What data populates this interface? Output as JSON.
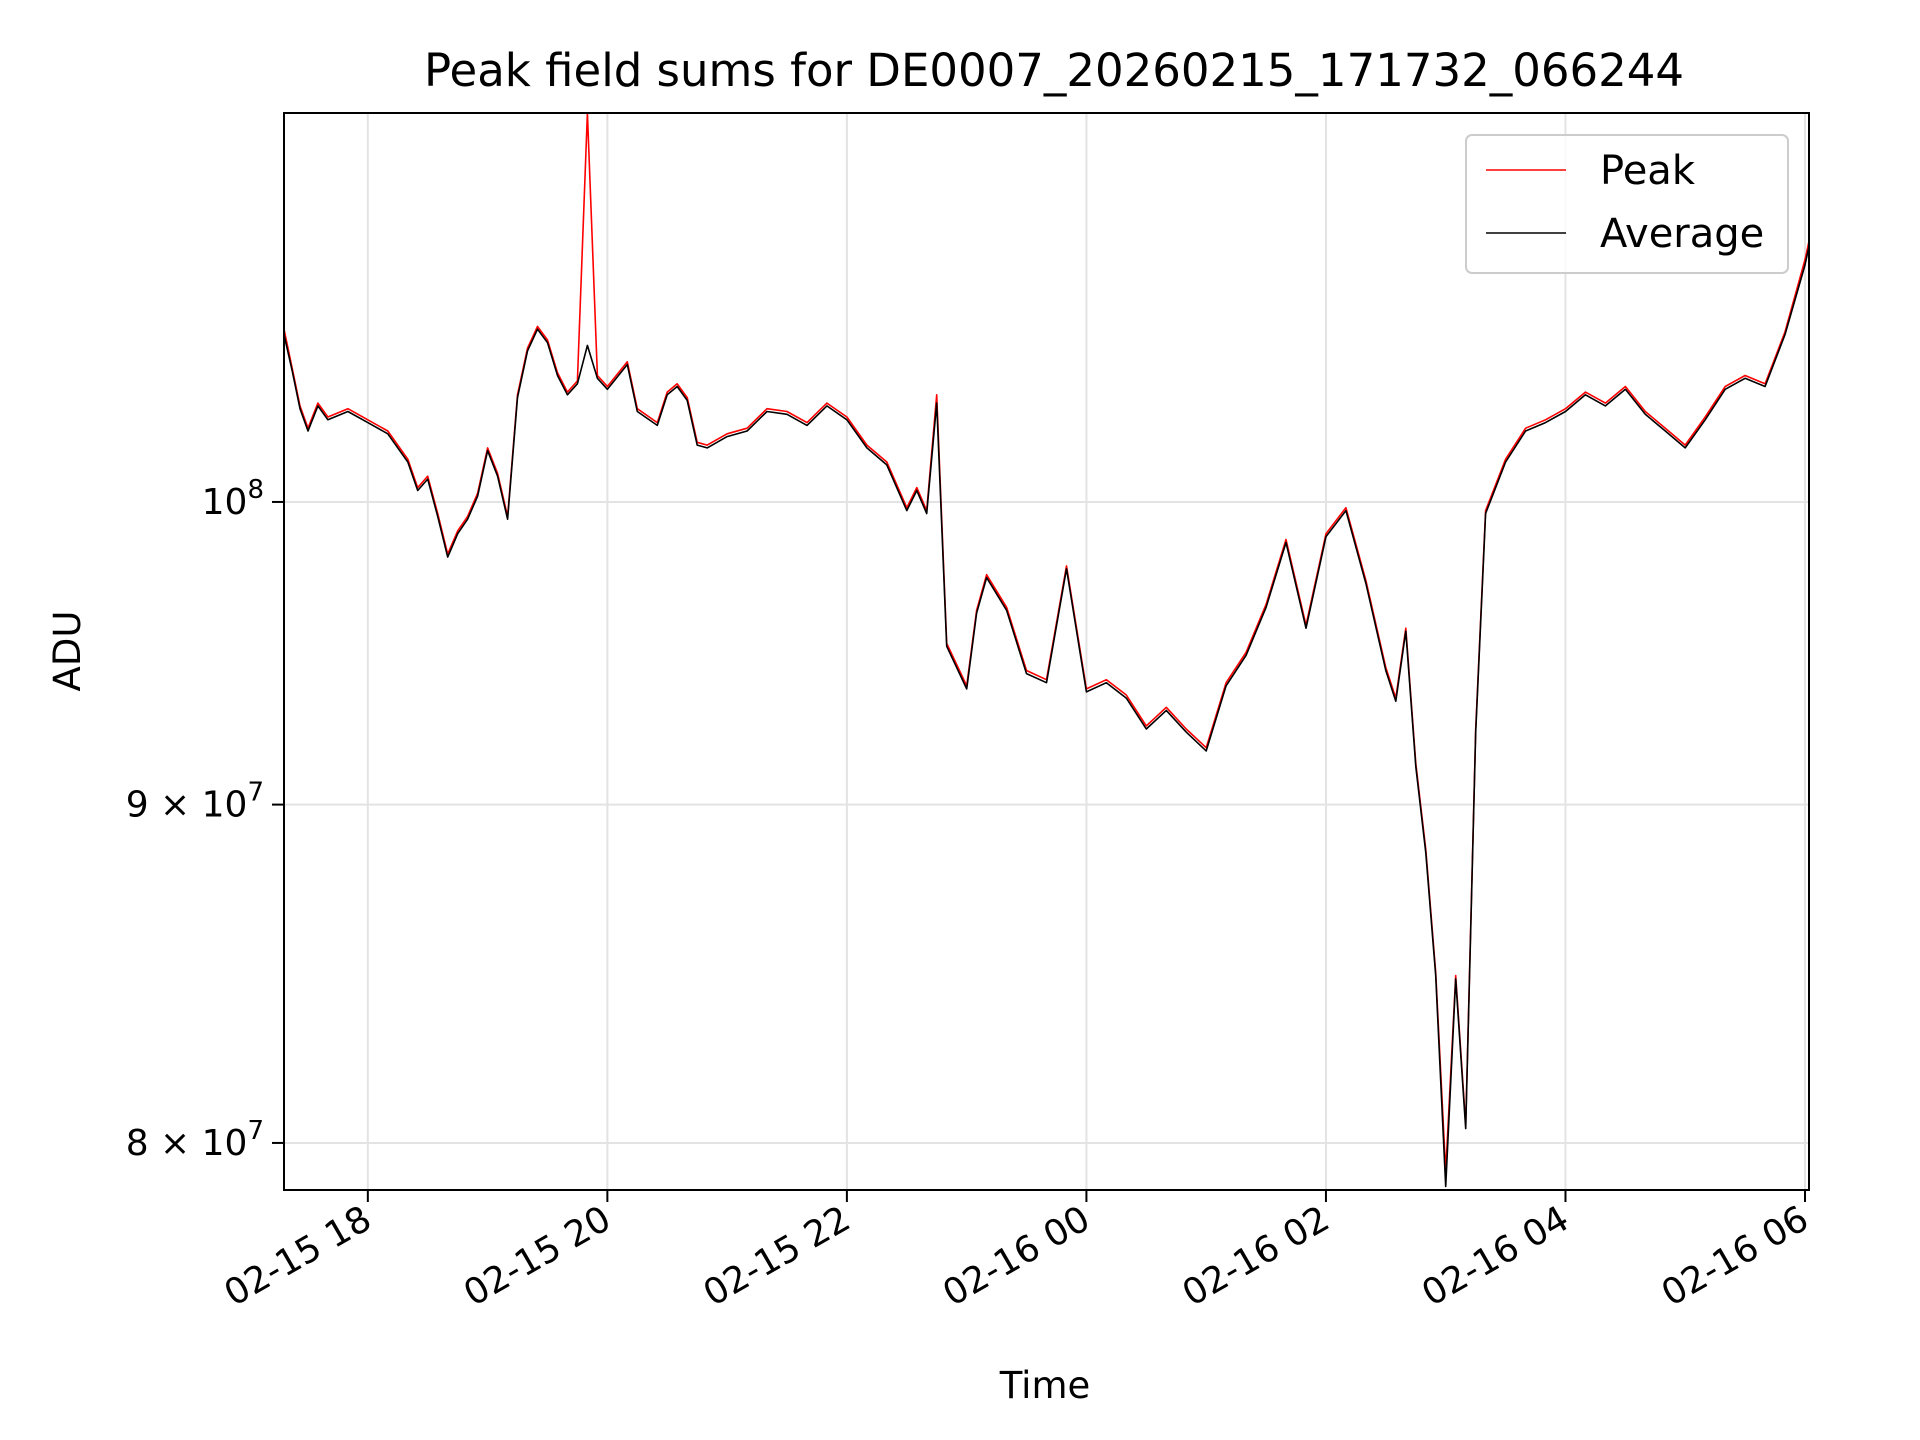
{
  "chart_data": {
    "type": "line",
    "title": "Peak field sums for DE0007_20260215_171732_066244",
    "xlabel": "Time",
    "ylabel": "ADU",
    "y_scale": "log",
    "grid": true,
    "legend_placement": "top-right",
    "xlim": [
      "2026-02-15 17:18",
      "2026-02-16 06:02"
    ],
    "ylim": [
      78700000,
      114500000
    ],
    "x_ticks": [
      {
        "value": "2026-02-15 18:00",
        "label": "02-15 18"
      },
      {
        "value": "2026-02-15 20:00",
        "label": "02-15 20"
      },
      {
        "value": "2026-02-15 22:00",
        "label": "02-15 22"
      },
      {
        "value": "2026-02-16 00:00",
        "label": "02-16 00"
      },
      {
        "value": "2026-02-16 02:00",
        "label": "02-16 02"
      },
      {
        "value": "2026-02-16 04:00",
        "label": "02-16 04"
      },
      {
        "value": "2026-02-16 06:00",
        "label": "02-16 06"
      }
    ],
    "y_ticks": [
      {
        "value": 80000000,
        "base": "8 × 10",
        "exp": "7"
      },
      {
        "value": 90000000,
        "base": "9 × 10",
        "exp": "7"
      },
      {
        "value": 100000000,
        "base": "10",
        "exp": "8"
      }
    ],
    "x": [
      "2026-02-15 17:18",
      "2026-02-15 17:22",
      "2026-02-15 17:26",
      "2026-02-15 17:30",
      "2026-02-15 17:35",
      "2026-02-15 17:40",
      "2026-02-15 17:50",
      "2026-02-15 18:00",
      "2026-02-15 18:10",
      "2026-02-15 18:20",
      "2026-02-15 18:25",
      "2026-02-15 18:30",
      "2026-02-15 18:35",
      "2026-02-15 18:40",
      "2026-02-15 18:45",
      "2026-02-15 18:50",
      "2026-02-15 18:55",
      "2026-02-15 19:00",
      "2026-02-15 19:05",
      "2026-02-15 19:10",
      "2026-02-15 19:15",
      "2026-02-15 19:20",
      "2026-02-15 19:25",
      "2026-02-15 19:30",
      "2026-02-15 19:35",
      "2026-02-15 19:40",
      "2026-02-15 19:45",
      "2026-02-15 19:50",
      "2026-02-15 19:55",
      "2026-02-15 20:00",
      "2026-02-15 20:10",
      "2026-02-15 20:15",
      "2026-02-15 20:25",
      "2026-02-15 20:30",
      "2026-02-15 20:35",
      "2026-02-15 20:40",
      "2026-02-15 20:45",
      "2026-02-15 20:50",
      "2026-02-15 21:00",
      "2026-02-15 21:10",
      "2026-02-15 21:20",
      "2026-02-15 21:30",
      "2026-02-15 21:40",
      "2026-02-15 21:50",
      "2026-02-15 22:00",
      "2026-02-15 22:10",
      "2026-02-15 22:20",
      "2026-02-15 22:30",
      "2026-02-15 22:35",
      "2026-02-15 22:40",
      "2026-02-15 22:45",
      "2026-02-15 22:50",
      "2026-02-15 23:00",
      "2026-02-15 23:05",
      "2026-02-15 23:10",
      "2026-02-15 23:20",
      "2026-02-15 23:30",
      "2026-02-15 23:40",
      "2026-02-15 23:50",
      "2026-02-16 00:00",
      "2026-02-16 00:10",
      "2026-02-16 00:20",
      "2026-02-16 00:30",
      "2026-02-16 00:40",
      "2026-02-16 00:50",
      "2026-02-16 01:00",
      "2026-02-16 01:10",
      "2026-02-16 01:20",
      "2026-02-16 01:30",
      "2026-02-16 01:40",
      "2026-02-16 01:50",
      "2026-02-16 02:00",
      "2026-02-16 02:10",
      "2026-02-16 02:20",
      "2026-02-16 02:30",
      "2026-02-16 02:35",
      "2026-02-16 02:40",
      "2026-02-16 02:45",
      "2026-02-16 02:50",
      "2026-02-16 02:55",
      "2026-02-16 03:00",
      "2026-02-16 03:05",
      "2026-02-16 03:10",
      "2026-02-16 03:15",
      "2026-02-16 03:20",
      "2026-02-16 03:30",
      "2026-02-16 03:40",
      "2026-02-16 03:50",
      "2026-02-16 04:00",
      "2026-02-16 04:10",
      "2026-02-16 04:20",
      "2026-02-16 04:30",
      "2026-02-16 04:40",
      "2026-02-16 04:50",
      "2026-02-16 05:00",
      "2026-02-16 05:10",
      "2026-02-16 05:20",
      "2026-02-16 05:30",
      "2026-02-16 05:40",
      "2026-02-16 05:50",
      "2026-02-16 06:00",
      "2026-02-16 06:02"
    ],
    "series": [
      {
        "name": "Peak",
        "color": "#ff0000",
        "values": [
          106200000,
          104800000,
          103400000,
          102600000,
          103500000,
          103000000,
          103300000,
          102900000,
          102500000,
          101500000,
          100500000,
          100900000,
          99600000,
          98200000,
          99000000,
          99500000,
          100300000,
          101900000,
          101000000,
          99500000,
          103800000,
          105500000,
          106300000,
          105800000,
          104600000,
          103900000,
          104300000,
          114500000,
          104500000,
          104100000,
          105000000,
          103300000,
          102800000,
          103900000,
          104200000,
          103700000,
          102100000,
          102000000,
          102400000,
          102600000,
          103300000,
          103200000,
          102800000,
          103500000,
          103000000,
          102000000,
          101400000,
          99800000,
          100500000,
          99700000,
          103800000,
          95200000,
          93800000,
          96300000,
          97500000,
          96400000,
          94300000,
          94000000,
          97800000,
          93700000,
          94000000,
          93500000,
          92500000,
          93100000,
          92400000,
          91800000,
          93900000,
          94900000,
          96500000,
          98700000,
          95800000,
          98900000,
          99800000,
          97300000,
          94400000,
          93400000,
          95700000,
          91300000,
          88600000,
          84900000,
          79200000,
          84800000,
          80500000,
          92400000,
          99700000,
          101500000,
          102600000,
          102900000,
          103300000,
          103900000,
          103500000,
          104100000,
          103200000,
          102600000,
          102000000,
          103000000,
          104100000,
          104500000,
          104200000,
          106100000,
          108800000,
          109500000
        ]
      },
      {
        "name": "Average",
        "color": "#000000",
        "values": [
          106000000,
          104700000,
          103300000,
          102500000,
          103400000,
          102900000,
          103200000,
          102800000,
          102400000,
          101400000,
          100400000,
          100800000,
          99500000,
          98100000,
          98900000,
          99400000,
          100200000,
          101800000,
          100900000,
          99400000,
          103700000,
          105400000,
          106200000,
          105700000,
          104500000,
          103800000,
          104200000,
          105600000,
          104400000,
          104000000,
          104900000,
          103200000,
          102700000,
          103800000,
          104100000,
          103600000,
          102000000,
          101900000,
          102300000,
          102500000,
          103200000,
          103100000,
          102700000,
          103400000,
          102900000,
          101900000,
          101300000,
          99700000,
          100400000,
          99600000,
          103500000,
          95100000,
          93700000,
          96200000,
          97400000,
          96300000,
          94200000,
          93900000,
          97700000,
          93600000,
          93900000,
          93400000,
          92400000,
          93000000,
          92300000,
          91700000,
          93800000,
          94800000,
          96400000,
          98600000,
          95700000,
          98800000,
          99700000,
          97200000,
          94300000,
          93300000,
          95600000,
          91200000,
          88500000,
          84800000,
          78800000,
          84700000,
          80400000,
          92300000,
          99600000,
          101400000,
          102500000,
          102800000,
          103200000,
          103800000,
          103400000,
          104000000,
          103100000,
          102500000,
          101900000,
          102900000,
          104000000,
          104400000,
          104100000,
          106000000,
          108600000,
          109300000
        ]
      }
    ]
  }
}
